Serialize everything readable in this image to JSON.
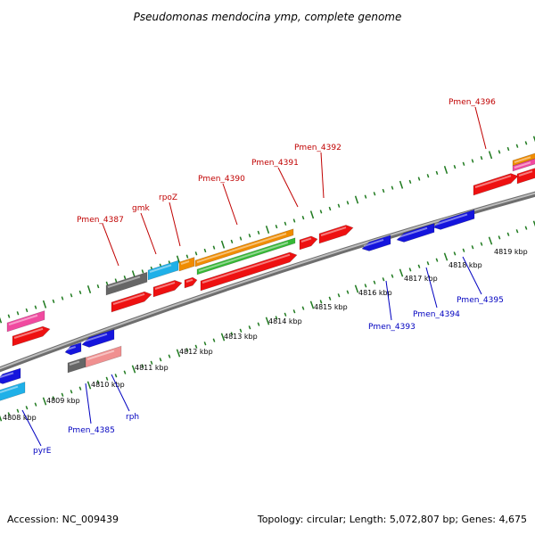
{
  "title": "Pseudomonas mendocina ymp, complete genome",
  "footer": {
    "accession": "Accession: NC_009439",
    "summary": "Topology: circular; Length: 5,072,807 bp; Genes: 4,675"
  },
  "colors": {
    "backbone": "#8a8a8a",
    "tick": "#1f7a1f",
    "label_forward": "#c00000",
    "label_reverse": "#0000c0",
    "red": "#ee1111",
    "blue": "#1515dd",
    "cyan": "#1fb0e8",
    "orange": "#f08c00",
    "green": "#36b836",
    "gray": "#666666",
    "pink": "#f04aa0",
    "salmon": "#f09090"
  },
  "kbp_labels": [
    "4808 kbp",
    "4809 kbp",
    "4810 kbp",
    "4811 kbp",
    "4812 kbp",
    "4813 kbp",
    "4814 kbp",
    "4815 kbp",
    "4816 kbp",
    "4817 kbp",
    "4818 kbp",
    "4819 kbp"
  ],
  "gene_labels": [
    {
      "text": "Pmen_4396",
      "strand": "forward"
    },
    {
      "text": "Pmen_4392",
      "strand": "forward"
    },
    {
      "text": "Pmen_4391",
      "strand": "forward"
    },
    {
      "text": "Pmen_4390",
      "strand": "forward"
    },
    {
      "text": "rpoZ",
      "strand": "forward"
    },
    {
      "text": "gmk",
      "strand": "forward"
    },
    {
      "text": "Pmen_4387",
      "strand": "forward"
    },
    {
      "text": "Pmen_4393",
      "strand": "reverse"
    },
    {
      "text": "Pmen_4394",
      "strand": "reverse"
    },
    {
      "text": "Pmen_4395",
      "strand": "reverse"
    },
    {
      "text": "Pmen_4385",
      "strand": "reverse"
    },
    {
      "text": "rph",
      "strand": "reverse"
    },
    {
      "text": "pyrE",
      "strand": "reverse"
    }
  ]
}
